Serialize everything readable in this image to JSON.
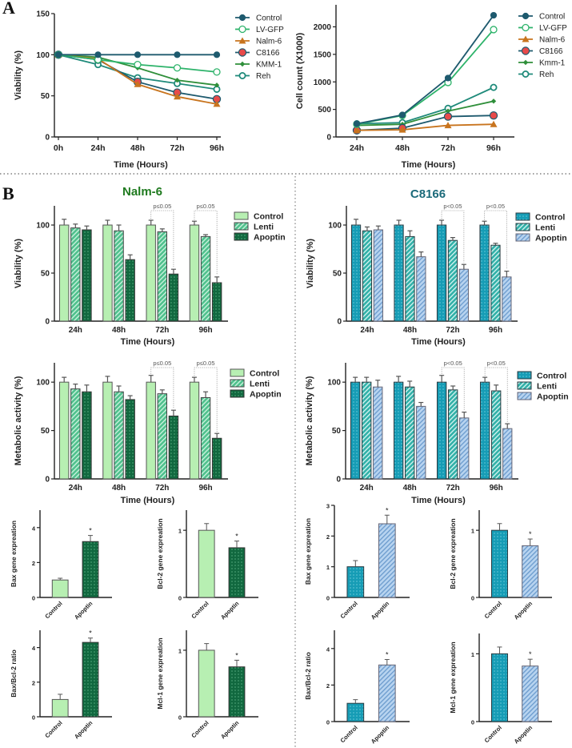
{
  "figure": {
    "panel_a_letter": "A",
    "panel_b_letter": "B",
    "nalm_title": "Nalm-6",
    "c8166_title": "C8166",
    "colors": {
      "control_line": "#1e5a6e",
      "lvgfp_line": "#2db36a",
      "nalm6_line": "#c8741e",
      "c8166_marker": "#e84a4a",
      "kmm1_line": "#2f8f3a",
      "reh_line": "#1f8a7a",
      "nalm_title": "#1f7a1f",
      "c8166_title": "#1b6a7a",
      "green_control": "#b7efb2",
      "green_lenti": "#4fc08d",
      "green_apoptin": "#11683f",
      "teal_control": "#169cb5",
      "teal_lenti": "#31b0a8",
      "teal_apoptin": "#b8d4f0"
    }
  },
  "chart_data": [
    {
      "id": "a-viability",
      "type": "line",
      "title": "",
      "xlabel": "Time (Hours)",
      "ylabel": "Viability (%)",
      "x": [
        "0h",
        "24h",
        "48h",
        "72h",
        "96h"
      ],
      "ylim": [
        0,
        150
      ],
      "yticks": [
        0,
        50,
        100,
        150
      ],
      "legend_position": "right",
      "series": [
        {
          "name": "Control",
          "values": [
            100,
            100,
            100,
            100,
            100
          ]
        },
        {
          "name": "LV-GFP",
          "values": [
            100,
            94,
            88,
            84,
            79
          ]
        },
        {
          "name": "Nalm-6",
          "values": [
            100,
            95,
            64,
            49,
            40
          ]
        },
        {
          "name": "C8166",
          "values": [
            100,
            94,
            67,
            54,
            46
          ]
        },
        {
          "name": "KMM-1",
          "values": [
            100,
            97,
            84,
            69,
            63
          ]
        },
        {
          "name": "Reh",
          "values": [
            100,
            88,
            72,
            65,
            58
          ]
        }
      ]
    },
    {
      "id": "a-cellcount",
      "type": "line",
      "title": "",
      "xlabel": "Time (Hours)",
      "ylabel": "Cell count (X1000)",
      "x": [
        "24h",
        "48h",
        "72h",
        "96h"
      ],
      "ylim": [
        0,
        2400
      ],
      "yticks": [
        0,
        500,
        1000,
        1500,
        2000
      ],
      "legend_position": "right",
      "series": [
        {
          "name": "Control",
          "values": [
            240,
            400,
            1070,
            2210
          ]
        },
        {
          "name": "LV-GFP",
          "values": [
            230,
            390,
            990,
            1950
          ]
        },
        {
          "name": "Nalm-6",
          "values": [
            120,
            130,
            210,
            230
          ]
        },
        {
          "name": "C8166",
          "values": [
            120,
            160,
            370,
            390
          ]
        },
        {
          "name": "Kmm-1",
          "values": [
            210,
            230,
            470,
            650
          ]
        },
        {
          "name": "Reh",
          "values": [
            240,
            260,
            520,
            900
          ]
        }
      ]
    },
    {
      "id": "b-nalm-viability",
      "type": "bar",
      "title": "Nalm-6",
      "xlabel": "Time (Hours)",
      "ylabel": "Viability (%)",
      "categories": [
        "24h",
        "48h",
        "72h",
        "96h"
      ],
      "ylim": [
        0,
        120
      ],
      "yticks": [
        0,
        50,
        100
      ],
      "legend_position": "right",
      "series": [
        {
          "name": "Control",
          "values": [
            100,
            100,
            100,
            100
          ],
          "errors": [
            6,
            5,
            5,
            4
          ]
        },
        {
          "name": "Lenti",
          "values": [
            97,
            94,
            93,
            88
          ],
          "errors": [
            4,
            6,
            3,
            2
          ]
        },
        {
          "name": "Apoptin",
          "values": [
            95,
            64,
            49,
            40
          ],
          "errors": [
            4,
            5,
            5,
            6
          ]
        }
      ],
      "annotations": [
        {
          "category": "72h",
          "text": "p≤0.05"
        },
        {
          "category": "96h",
          "text": "p≤0.05"
        }
      ]
    },
    {
      "id": "b-c8166-viability",
      "type": "bar",
      "title": "C8166",
      "xlabel": "Time (Hours)",
      "ylabel": "Viability (%)",
      "categories": [
        "24h",
        "48h",
        "72h",
        "96h"
      ],
      "ylim": [
        0,
        120
      ],
      "yticks": [
        0,
        50,
        100
      ],
      "legend_position": "right",
      "series": [
        {
          "name": "Control",
          "values": [
            100,
            100,
            100,
            100
          ],
          "errors": [
            6,
            5,
            5,
            4
          ]
        },
        {
          "name": "Lenti",
          "values": [
            94,
            88,
            84,
            79
          ],
          "errors": [
            4,
            6,
            3,
            2
          ]
        },
        {
          "name": "Apoptin",
          "values": [
            95,
            67,
            54,
            46
          ],
          "errors": [
            4,
            5,
            5,
            6
          ]
        }
      ],
      "annotations": [
        {
          "category": "72h",
          "text": "p<0.05"
        },
        {
          "category": "96h",
          "text": "p<0.05"
        }
      ]
    },
    {
      "id": "b-nalm-metabolic",
      "type": "bar",
      "title": "",
      "xlabel": "Time (Hours)",
      "ylabel": "Metabolic activity (%)",
      "categories": [
        "24h",
        "48h",
        "72h",
        "96h"
      ],
      "ylim": [
        0,
        120
      ],
      "yticks": [
        0,
        50,
        100
      ],
      "legend_position": "right",
      "series": [
        {
          "name": "Control",
          "values": [
            100,
            100,
            100,
            100
          ],
          "errors": [
            5,
            6,
            7,
            5
          ]
        },
        {
          "name": "Lenti",
          "values": [
            93,
            90,
            88,
            84
          ],
          "errors": [
            5,
            6,
            4,
            6
          ]
        },
        {
          "name": "Apoptin",
          "values": [
            90,
            82,
            65,
            42
          ],
          "errors": [
            7,
            4,
            6,
            5
          ]
        }
      ],
      "annotations": [
        {
          "category": "72h",
          "text": "p≤0.05"
        },
        {
          "category": "96h",
          "text": "p≤0.05"
        }
      ]
    },
    {
      "id": "b-c8166-metabolic",
      "type": "bar",
      "title": "",
      "xlabel": "Time (Hours)",
      "ylabel": "Metabolic activity (%)",
      "categories": [
        "24h",
        "48h",
        "72h",
        "96h"
      ],
      "ylim": [
        0,
        120
      ],
      "yticks": [
        0,
        50,
        100
      ],
      "legend_position": "right",
      "series": [
        {
          "name": "Control",
          "values": [
            100,
            100,
            100,
            100
          ],
          "errors": [
            5,
            6,
            7,
            5
          ]
        },
        {
          "name": "Lenti",
          "values": [
            100,
            95,
            92,
            91
          ],
          "errors": [
            5,
            6,
            4,
            6
          ]
        },
        {
          "name": "Apoptin",
          "values": [
            95,
            75,
            63,
            52
          ],
          "errors": [
            7,
            4,
            6,
            5
          ]
        }
      ],
      "annotations": [
        {
          "category": "72h",
          "text": "p<0.05"
        },
        {
          "category": "96h",
          "text": "p<0.05"
        }
      ]
    },
    {
      "id": "b-nalm-bax",
      "type": "bar",
      "ylabel": "Bax gene expreation",
      "categories": [
        "Control",
        "Apoptin"
      ],
      "values": [
        1.0,
        3.2
      ],
      "errors": [
        0.1,
        0.35
      ],
      "ylim": [
        0,
        5
      ],
      "yticks": [
        0,
        2,
        4
      ],
      "significance": [
        "",
        "*"
      ]
    },
    {
      "id": "b-nalm-bcl2",
      "type": "bar",
      "ylabel": "Bcl-2 gene expreation",
      "categories": [
        "Control",
        "Apoptin"
      ],
      "values": [
        1.0,
        0.74
      ],
      "errors": [
        0.1,
        0.1
      ],
      "ylim": [
        0,
        1.3
      ],
      "yticks": [
        0,
        1
      ],
      "significance": [
        "",
        "*"
      ]
    },
    {
      "id": "b-c8166-bax",
      "type": "bar",
      "ylabel": "Bax gene expreation",
      "categories": [
        "Control",
        "Apoptin"
      ],
      "values": [
        1.0,
        2.4
      ],
      "errors": [
        0.2,
        0.28
      ],
      "ylim": [
        0,
        3
      ],
      "yticks": [
        0,
        1,
        2,
        3
      ],
      "significance": [
        "",
        "*"
      ]
    },
    {
      "id": "b-c8166-bcl2",
      "type": "bar",
      "ylabel": "Bcl-2 gene expreation",
      "categories": [
        "Control",
        "Apoptin"
      ],
      "values": [
        1.0,
        0.77
      ],
      "errors": [
        0.1,
        0.1
      ],
      "ylim": [
        0,
        1.3
      ],
      "yticks": [
        0,
        1
      ],
      "significance": [
        "",
        "*"
      ]
    },
    {
      "id": "b-nalm-ratio",
      "type": "bar",
      "ylabel": "Bax/Bcl-2 ratio",
      "categories": [
        "Control",
        "Apoptin"
      ],
      "values": [
        1.0,
        4.3
      ],
      "errors": [
        0.3,
        0.25
      ],
      "ylim": [
        0,
        5
      ],
      "yticks": [
        0,
        2,
        4
      ],
      "significance": [
        "",
        "*"
      ]
    },
    {
      "id": "b-nalm-mcl1",
      "type": "bar",
      "ylabel": "Mcl-1 gene expreation",
      "categories": [
        "Control",
        "Apoptin"
      ],
      "values": [
        1.0,
        0.75
      ],
      "errors": [
        0.1,
        0.1
      ],
      "ylim": [
        0,
        1.3
      ],
      "yticks": [
        0,
        1
      ],
      "significance": [
        "",
        "*"
      ]
    },
    {
      "id": "b-c8166-ratio",
      "type": "bar",
      "ylabel": "Bax/Bcl-2 ratio",
      "categories": [
        "Control",
        "Apoptin"
      ],
      "values": [
        1.0,
        3.1
      ],
      "errors": [
        0.2,
        0.3
      ],
      "ylim": [
        0,
        5
      ],
      "yticks": [
        0,
        2,
        4
      ],
      "significance": [
        "",
        "*"
      ]
    },
    {
      "id": "b-c8166-mcl1",
      "type": "bar",
      "ylabel": "Mcl-1 gene expreation",
      "categories": [
        "Control",
        "Apoptin"
      ],
      "values": [
        1.0,
        0.82
      ],
      "errors": [
        0.1,
        0.1
      ],
      "ylim": [
        0,
        1.3
      ],
      "yticks": [
        0,
        1
      ],
      "significance": [
        "",
        "*"
      ]
    }
  ]
}
